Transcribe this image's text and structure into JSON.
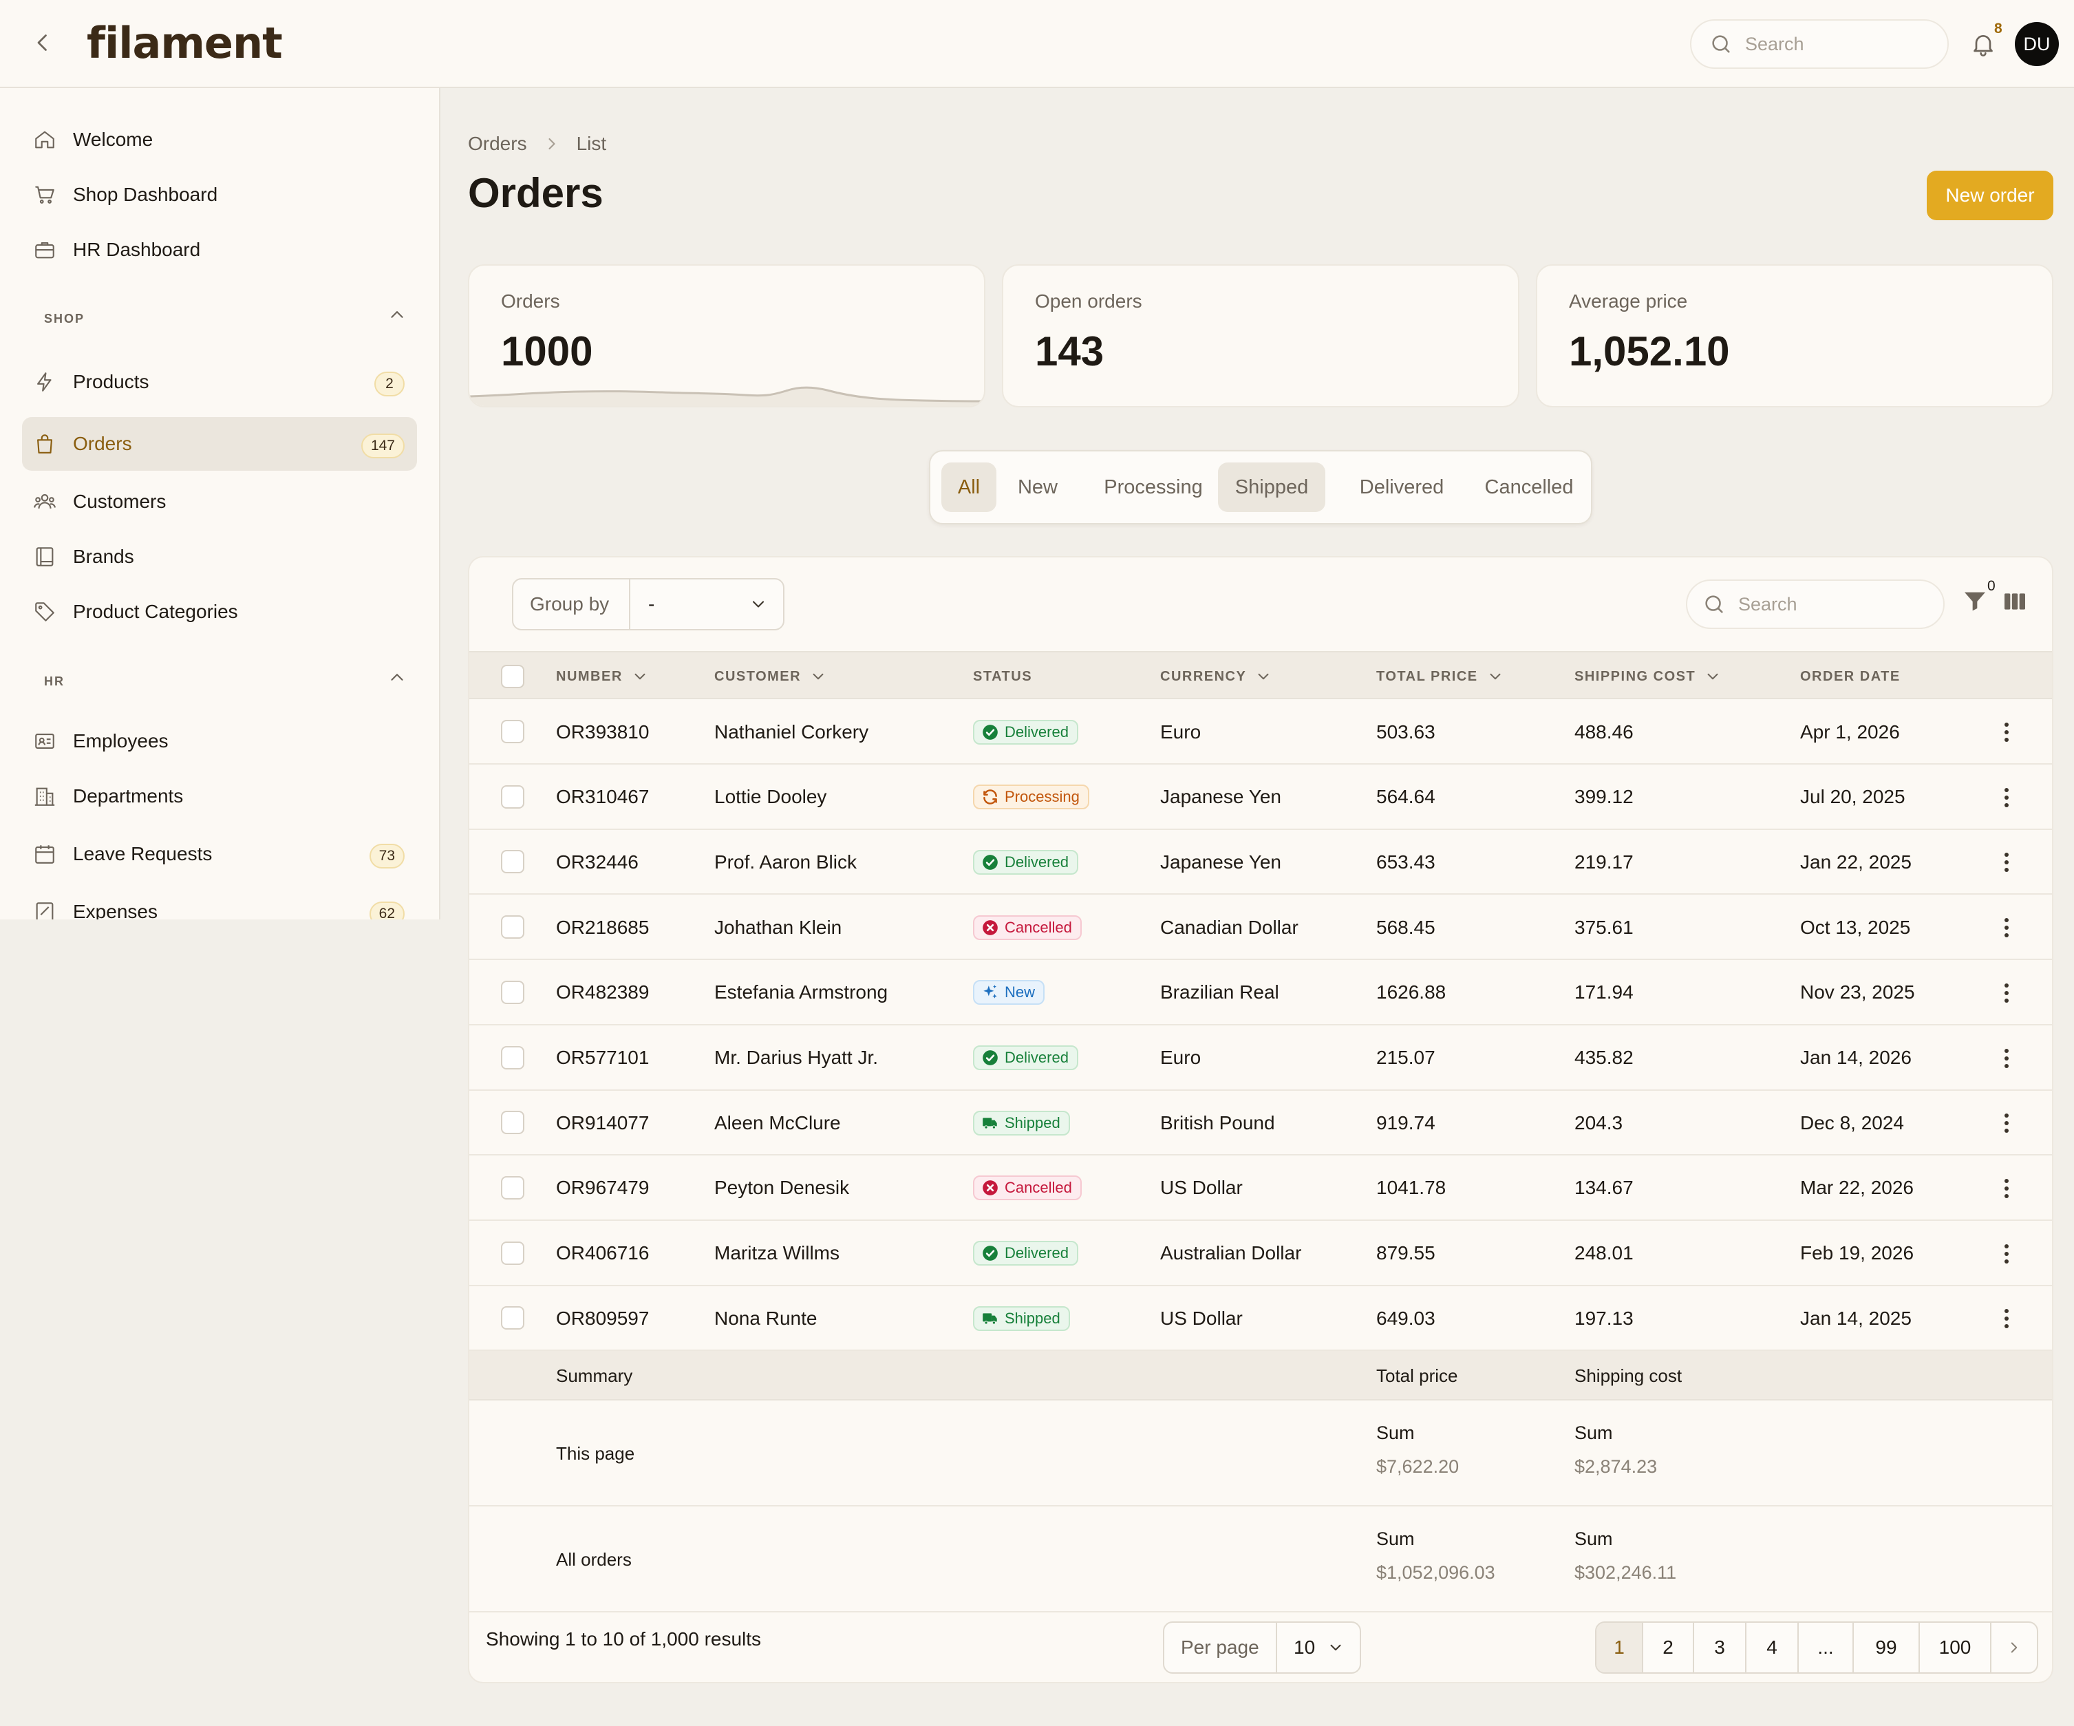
{
  "app": {
    "logo": "filament"
  },
  "topbar": {
    "search_placeholder": "Search",
    "notification_count": "8",
    "avatar_initials": "DU"
  },
  "sidebar": {
    "top_items": [
      {
        "label": "Welcome",
        "icon": "home-icon"
      },
      {
        "label": "Shop Dashboard",
        "icon": "cart-icon"
      },
      {
        "label": "HR Dashboard",
        "icon": "briefcase-icon"
      }
    ],
    "groups": [
      {
        "label": "SHOP",
        "items": [
          {
            "label": "Products",
            "icon": "bolt-icon",
            "badge": "2"
          },
          {
            "label": "Orders",
            "icon": "shopping-bag-icon",
            "badge": "147",
            "active": true
          },
          {
            "label": "Customers",
            "icon": "users-icon"
          },
          {
            "label": "Brands",
            "icon": "book-icon"
          },
          {
            "label": "Product Categories",
            "icon": "tag-icon"
          }
        ]
      },
      {
        "label": "HR",
        "items": [
          {
            "label": "Employees",
            "icon": "id-card-icon"
          },
          {
            "label": "Departments",
            "icon": "building-icon"
          },
          {
            "label": "Leave Requests",
            "icon": "calendar-icon",
            "badge": "73"
          },
          {
            "label": "Expenses",
            "icon": "receipt-icon",
            "badge": "62"
          }
        ]
      }
    ]
  },
  "breadcrumb": [
    "Orders",
    "List"
  ],
  "page": {
    "title": "Orders",
    "new_button": "New order"
  },
  "stats": [
    {
      "label": "Orders",
      "value": "1000",
      "has_chart": true
    },
    {
      "label": "Open orders",
      "value": "143"
    },
    {
      "label": "Average price",
      "value": "1,052.10"
    }
  ],
  "tabs": [
    {
      "label": "All",
      "active": true
    },
    {
      "label": "New"
    },
    {
      "label": "Processing"
    },
    {
      "label": "Shipped"
    },
    {
      "label": "Delivered"
    },
    {
      "label": "Cancelled"
    }
  ],
  "table": {
    "group_by_label": "Group by",
    "group_by_value": "-",
    "search_placeholder": "Search",
    "filter_count": "0",
    "columns": [
      "NUMBER",
      "CUSTOMER",
      "STATUS",
      "CURRENCY",
      "TOTAL PRICE",
      "SHIPPING COST",
      "ORDER DATE"
    ],
    "rows": [
      {
        "number": "OR393810",
        "customer": "Nathaniel Corkery",
        "status": "Delivered",
        "currency": "Euro",
        "total": "503.63",
        "shipping": "488.46",
        "date": "Apr 1, 2026"
      },
      {
        "number": "OR310467",
        "customer": "Lottie Dooley",
        "status": "Processing",
        "currency": "Japanese Yen",
        "total": "564.64",
        "shipping": "399.12",
        "date": "Jul 20, 2025"
      },
      {
        "number": "OR32446",
        "customer": "Prof. Aaron Blick",
        "status": "Delivered",
        "currency": "Japanese Yen",
        "total": "653.43",
        "shipping": "219.17",
        "date": "Jan 22, 2025"
      },
      {
        "number": "OR218685",
        "customer": "Johathan Klein",
        "status": "Cancelled",
        "currency": "Canadian Dollar",
        "total": "568.45",
        "shipping": "375.61",
        "date": "Oct 13, 2025"
      },
      {
        "number": "OR482389",
        "customer": "Estefania Armstrong",
        "status": "New",
        "currency": "Brazilian Real",
        "total": "1626.88",
        "shipping": "171.94",
        "date": "Nov 23, 2025"
      },
      {
        "number": "OR577101",
        "customer": "Mr. Darius Hyatt Jr.",
        "status": "Delivered",
        "currency": "Euro",
        "total": "215.07",
        "shipping": "435.82",
        "date": "Jan 14, 2026"
      },
      {
        "number": "OR914077",
        "customer": "Aleen McClure",
        "status": "Shipped",
        "currency": "British Pound",
        "total": "919.74",
        "shipping": "204.3",
        "date": "Dec 8, 2024"
      },
      {
        "number": "OR967479",
        "customer": "Peyton Denesik",
        "status": "Cancelled",
        "currency": "US Dollar",
        "total": "1041.78",
        "shipping": "134.67",
        "date": "Mar 22, 2026"
      },
      {
        "number": "OR406716",
        "customer": "Maritza Willms",
        "status": "Delivered",
        "currency": "Australian Dollar",
        "total": "879.55",
        "shipping": "248.01",
        "date": "Feb 19, 2026"
      },
      {
        "number": "OR809597",
        "customer": "Nona Runte",
        "status": "Shipped",
        "currency": "US Dollar",
        "total": "649.03",
        "shipping": "197.13",
        "date": "Jan 14, 2025"
      }
    ],
    "summary": {
      "label": "Summary",
      "total_label": "Total price",
      "shipping_label": "Shipping cost",
      "this_page": {
        "label": "This page",
        "sum_label": "Sum",
        "total": "$7,622.20",
        "shipping": "$2,874.23"
      },
      "all": {
        "label": "All orders",
        "sum_label": "Sum",
        "total": "$1,052,096.03",
        "shipping": "$302,246.11"
      }
    },
    "footer": {
      "showing": "Showing 1 to 10 of 1,000 results",
      "per_page_label": "Per page",
      "per_page_value": "10",
      "pages": [
        "1",
        "2",
        "3",
        "4",
        "...",
        "99",
        "100"
      ],
      "current_page": "1"
    }
  },
  "colors": {
    "accent": "#e3aa21",
    "active_text": "#8a5e10",
    "background": "#f2efe9",
    "surface": "#fcf9f4"
  }
}
